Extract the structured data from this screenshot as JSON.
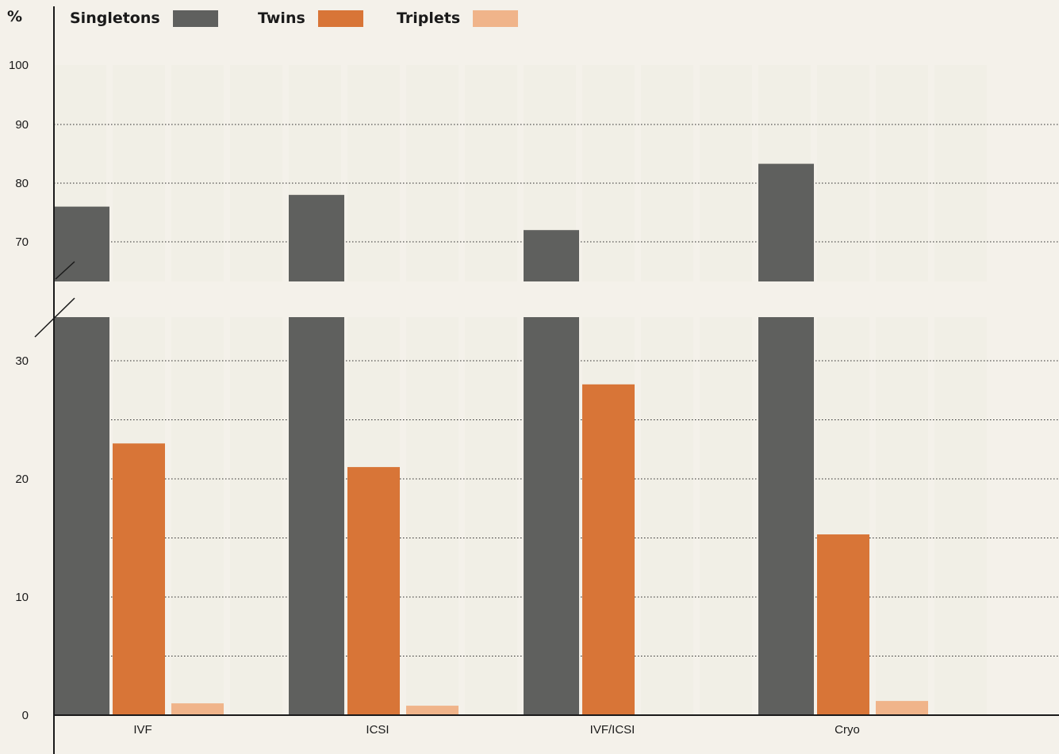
{
  "chart_data": {
    "type": "bar",
    "ylabel": "%",
    "categories": [
      "IVF",
      "ICSI",
      "IVF/ICSI",
      "Cryo"
    ],
    "series": [
      {
        "name": "Singletons",
        "color": "#5f605e",
        "values": [
          76,
          78,
          72,
          83.3
        ]
      },
      {
        "name": "Twins",
        "color": "#d87537",
        "values": [
          23,
          21,
          28,
          15.3
        ]
      },
      {
        "name": "Triplets",
        "color": "#f0b48a",
        "values": [
          1,
          0.8,
          0,
          1.2
        ]
      }
    ],
    "y_ticks": [
      "0",
      "10",
      "20",
      "30",
      "70",
      "80",
      "90",
      "100"
    ],
    "axis_break": {
      "lower_range": [
        0,
        33
      ],
      "upper_range": [
        63.5,
        100
      ]
    },
    "grid": "dotted horizontal"
  }
}
